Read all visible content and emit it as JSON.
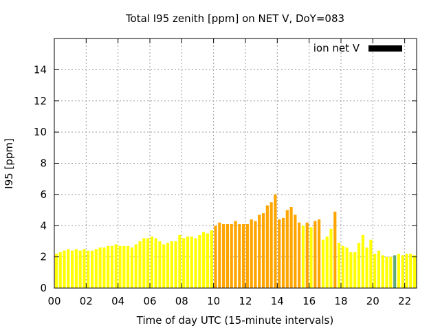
{
  "chart_data": {
    "type": "bar",
    "title": "Total I95 zenith [ppm] on NET V, DoY=083",
    "xlabel": "Time of day UTC (15-minute intervals)",
    "ylabel": "I95 [ppm]",
    "xlim": [
      0,
      22.75
    ],
    "ylim": [
      0,
      16
    ],
    "x_ticks": [
      0,
      2,
      4,
      6,
      8,
      10,
      12,
      14,
      16,
      18,
      20,
      22
    ],
    "x_tick_labels": [
      "00",
      "02",
      "04",
      "06",
      "08",
      "10",
      "12",
      "14",
      "16",
      "18",
      "20",
      "22"
    ],
    "y_ticks": [
      0,
      2,
      4,
      6,
      8,
      10,
      12,
      14
    ],
    "y_tick_labels": [
      "0",
      "2",
      "4",
      "6",
      "8",
      "10",
      "12",
      "14"
    ],
    "grid": true,
    "legend": {
      "position": "top-right",
      "entries": [
        {
          "label": "ion net V",
          "color": "#000000"
        }
      ]
    },
    "bar_interval_hours": 0.25,
    "colors": {
      "low": "#ffff00",
      "medium": "#ffa500",
      "green": "#5fa87c"
    },
    "series": [
      {
        "values": [
          2.2,
          2.3,
          2.4,
          2.5,
          2.4,
          2.5,
          2.4,
          2.5,
          2.4,
          2.4,
          2.5,
          2.6,
          2.6,
          2.7,
          2.7,
          2.8,
          2.7,
          2.7,
          2.7,
          2.6,
          2.8,
          3.0,
          3.2,
          3.2,
          3.3,
          3.2,
          3.0,
          2.8,
          2.9,
          3.0,
          3.0,
          3.4,
          3.2,
          3.3,
          3.3,
          3.2,
          3.4,
          3.6,
          3.5,
          3.7,
          4.0,
          4.2,
          4.1,
          4.1,
          4.1,
          4.3,
          4.1,
          4.1,
          4.1,
          4.4,
          4.3,
          4.7,
          4.8,
          5.3,
          5.5,
          6.0,
          4.4,
          4.5,
          5.0,
          5.2,
          4.7,
          4.2,
          4.0,
          4.2,
          3.9,
          4.3,
          4.4,
          3.1,
          3.3,
          3.8,
          4.9,
          2.9,
          2.7,
          2.6,
          2.3,
          2.3,
          2.9,
          3.4,
          2.6,
          3.1,
          2.2,
          2.4,
          2.1,
          2.0,
          2.0,
          2.1,
          2.2,
          2.1,
          2.2,
          2.2,
          2.1
        ],
        "color_class": [
          "low",
          "low",
          "low",
          "low",
          "low",
          "low",
          "low",
          "low",
          "low",
          "low",
          "low",
          "low",
          "low",
          "low",
          "low",
          "low",
          "low",
          "low",
          "low",
          "low",
          "low",
          "low",
          "low",
          "low",
          "low",
          "low",
          "low",
          "low",
          "low",
          "low",
          "low",
          "low",
          "low",
          "low",
          "low",
          "low",
          "low",
          "low",
          "low",
          "low",
          "medium",
          "medium",
          "medium",
          "medium",
          "medium",
          "medium",
          "medium",
          "medium",
          "medium",
          "medium",
          "medium",
          "medium",
          "medium",
          "medium",
          "medium",
          "medium",
          "medium",
          "medium",
          "medium",
          "medium",
          "medium",
          "medium",
          "low",
          "medium",
          "low",
          "medium",
          "medium",
          "low",
          "low",
          "low",
          "medium",
          "low",
          "low",
          "low",
          "low",
          "low",
          "low",
          "low",
          "low",
          "low",
          "low",
          "low",
          "low",
          "low",
          "low",
          "green",
          "low",
          "low",
          "low",
          "low",
          "low"
        ]
      }
    ]
  }
}
